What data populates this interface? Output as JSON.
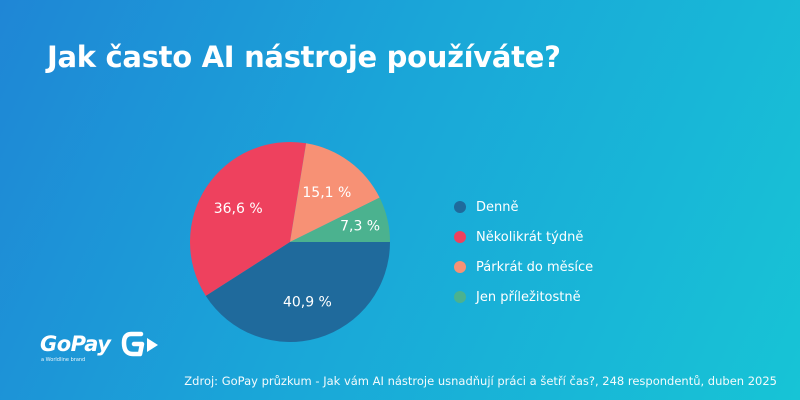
{
  "title": "Jak často AI nástroje používáte?",
  "chart_data": {
    "type": "pie",
    "categories": [
      "Denně",
      "Několikrát týdně",
      "Párkrát do měsíce",
      "Jen příležitostně"
    ],
    "values": [
      40.9,
      36.6,
      15.1,
      7.3
    ],
    "labels": [
      "40,9 %",
      "36,6 %",
      "15,1 %",
      "7,3 %"
    ],
    "colors": [
      "#1f6a9c",
      "#ee415e",
      "#f79175",
      "#4bb28f"
    ],
    "legend_position": "right"
  },
  "source": "Zdroj: GoPay průzkum - Jak vám AI nástroje usnadňují práci a šetří čas?, 248 respondentů, duben 2025",
  "logo": {
    "word": "GoPay",
    "tagline": "a Worldline brand"
  }
}
